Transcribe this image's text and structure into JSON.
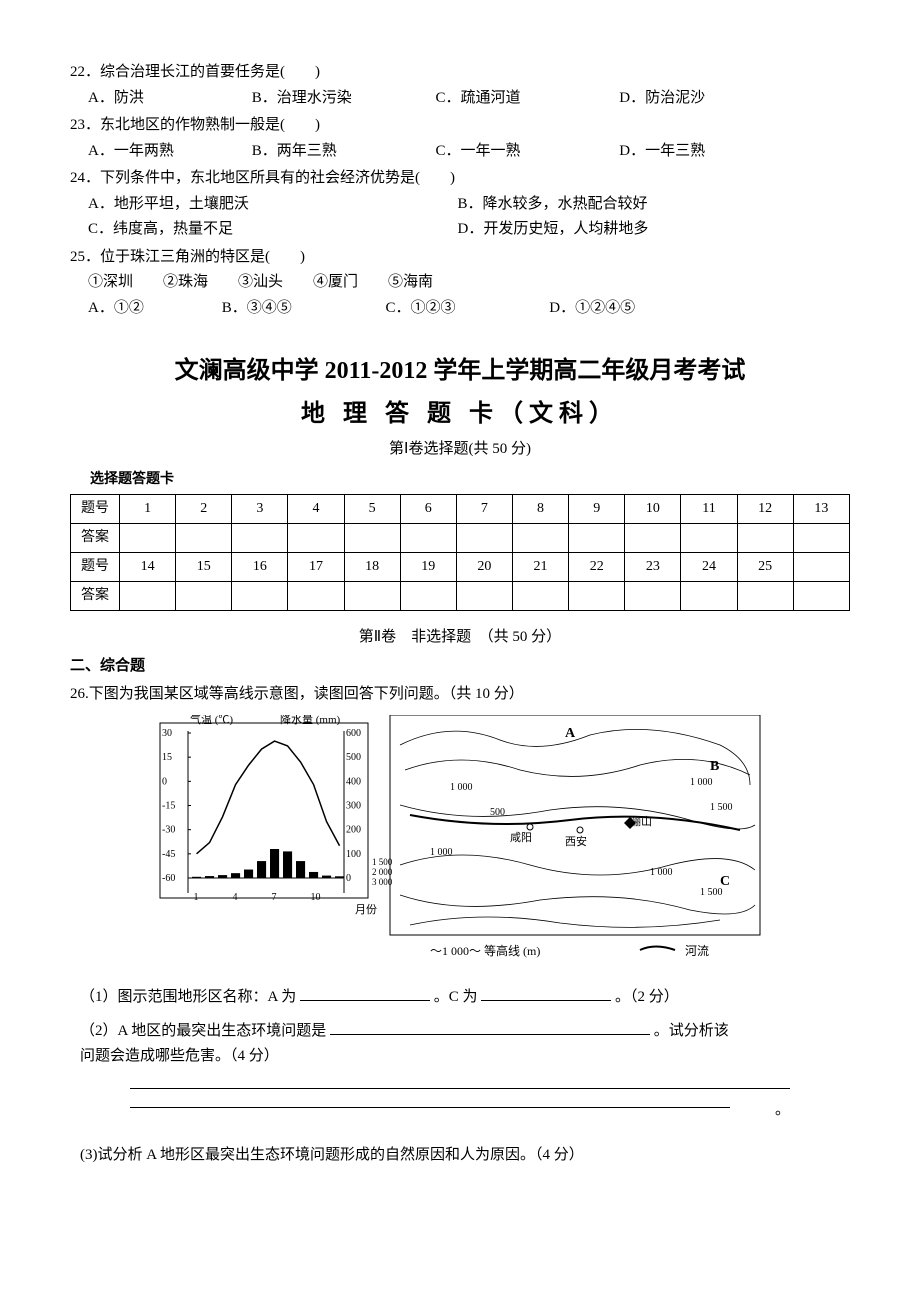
{
  "questions": {
    "q22": {
      "stem": "22．综合治理长江的首要任务是(　　)",
      "opts": [
        "A．防洪",
        "B．治理水污染",
        "C．疏通河道",
        "D．防治泥沙"
      ]
    },
    "q23": {
      "stem": "23．东北地区的作物熟制一般是(　　)",
      "opts": [
        "A．一年两熟",
        "B．两年三熟",
        "C．一年一熟",
        "D．一年三熟"
      ]
    },
    "q24": {
      "stem": "24．下列条件中，东北地区所具有的社会经济优势是(　　)",
      "opts": [
        "A．地形平坦，土壤肥沃",
        "B．降水较多，水热配合较好",
        "C．纬度高，热量不足",
        "D．开发历史短，人均耕地多"
      ]
    },
    "q25": {
      "stem": "25．位于珠江三角洲的特区是(　　)",
      "sub": "①深圳　　②珠海　　③汕头　　④厦门　　⑤海南",
      "opts": [
        "A．①②",
        "B．③④⑤",
        "C．①②③",
        "D．①②④⑤"
      ]
    }
  },
  "titles": {
    "main": "文澜高级中学 2011-2012 学年上学期高二年级月考考试",
    "sub": "地 理 答 题 卡（文科）",
    "part1": "第Ⅰ卷选择题(共 50 分)",
    "card": "选择题答题卡",
    "part2": "第Ⅱ卷　非选择题　（共 50 分）",
    "comp": "二、综合题"
  },
  "table": {
    "row_th": "题号",
    "row_ans": "答案",
    "row1": [
      "1",
      "2",
      "3",
      "4",
      "5",
      "6",
      "7",
      "8",
      "9",
      "10",
      "11",
      "12",
      "13"
    ],
    "row2": [
      "14",
      "15",
      "16",
      "17",
      "18",
      "19",
      "20",
      "21",
      "22",
      "23",
      "24",
      "25",
      ""
    ]
  },
  "q26": {
    "stem": "26.下图为我国某区域等高线示意图，读图回答下列问题。（共 10 分）",
    "chart": {
      "temp_label": "气温 (℃)",
      "precip_label": "降水量 (mm)",
      "y_left_ticks": [
        "30",
        "15",
        "0",
        "-15",
        "-30",
        "-45",
        "-60"
      ],
      "y_right_ticks": [
        "600",
        "500",
        "400",
        "300",
        "200",
        "100",
        "0"
      ],
      "x_ticks": [
        "1",
        "4",
        "7",
        "10"
      ],
      "x_unit": "月份",
      "bar_values": [
        5,
        8,
        12,
        20,
        35,
        70,
        120,
        110,
        70,
        25,
        10,
        7
      ],
      "temp_curve": [
        -45,
        -38,
        -22,
        -2,
        10,
        20,
        25,
        22,
        12,
        -2,
        -25,
        -40
      ]
    },
    "map": {
      "contour_vals": [
        "1 000",
        "500",
        "1 000",
        "1 500",
        "1 000",
        "1 500",
        "2 000",
        "3 000",
        "1 500"
      ],
      "labels_ABC": [
        "A",
        "B",
        "C"
      ],
      "cities": [
        "咸阳",
        "西安",
        "骊山"
      ],
      "legend_contour": "〜1 000〜 等高线 (m)",
      "legend_river": "河流"
    },
    "sub1_pre": "（1）图示范围地形区名称：A 为",
    "sub1_mid": "。C 为",
    "sub1_end": "。（2 分）",
    "sub2_pre": "（2）A 地区的最突出生态环境问题是",
    "sub2_end": "。试分析该",
    "sub2_line2": "问题会造成哪些危害。（4 分）",
    "sub3": "(3)试分析 A 地形区最突出生态环境问题形成的自然原因和人为原因。（4 分）"
  }
}
